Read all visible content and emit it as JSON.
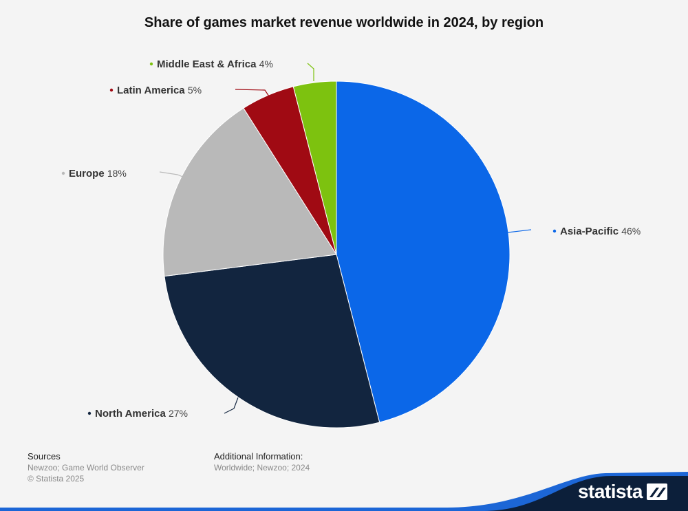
{
  "title": "Share of games market revenue worldwide in 2024, by region",
  "chart_data": {
    "type": "pie",
    "title": "Share of games market revenue worldwide in 2024, by region",
    "slices": [
      {
        "label": "Asia-Pacific",
        "value": 46,
        "value_label": "46%",
        "color": "#0b67e8"
      },
      {
        "label": "North America",
        "value": 27,
        "value_label": "27%",
        "color": "#12253f"
      },
      {
        "label": "Europe",
        "value": 18,
        "value_label": "18%",
        "color": "#b9b9b9"
      },
      {
        "label": "Latin America",
        "value": 5,
        "value_label": "5%",
        "color": "#a00a13"
      },
      {
        "label": "Middle East & Africa",
        "value": 4,
        "value_label": "4%",
        "color": "#7dc20f"
      }
    ],
    "unit": "%"
  },
  "footer": {
    "sources_heading": "Sources",
    "sources_text": "Newzoo; Game World Observer",
    "copyright": "© Statista 2025",
    "additional_heading": "Additional Information:",
    "additional_text": "Worldwide; Newzoo; 2024"
  },
  "brand": {
    "name": "statista",
    "icon": "statista-logo-icon",
    "color": "#0c1f3a",
    "accent": "#1c66d6"
  }
}
